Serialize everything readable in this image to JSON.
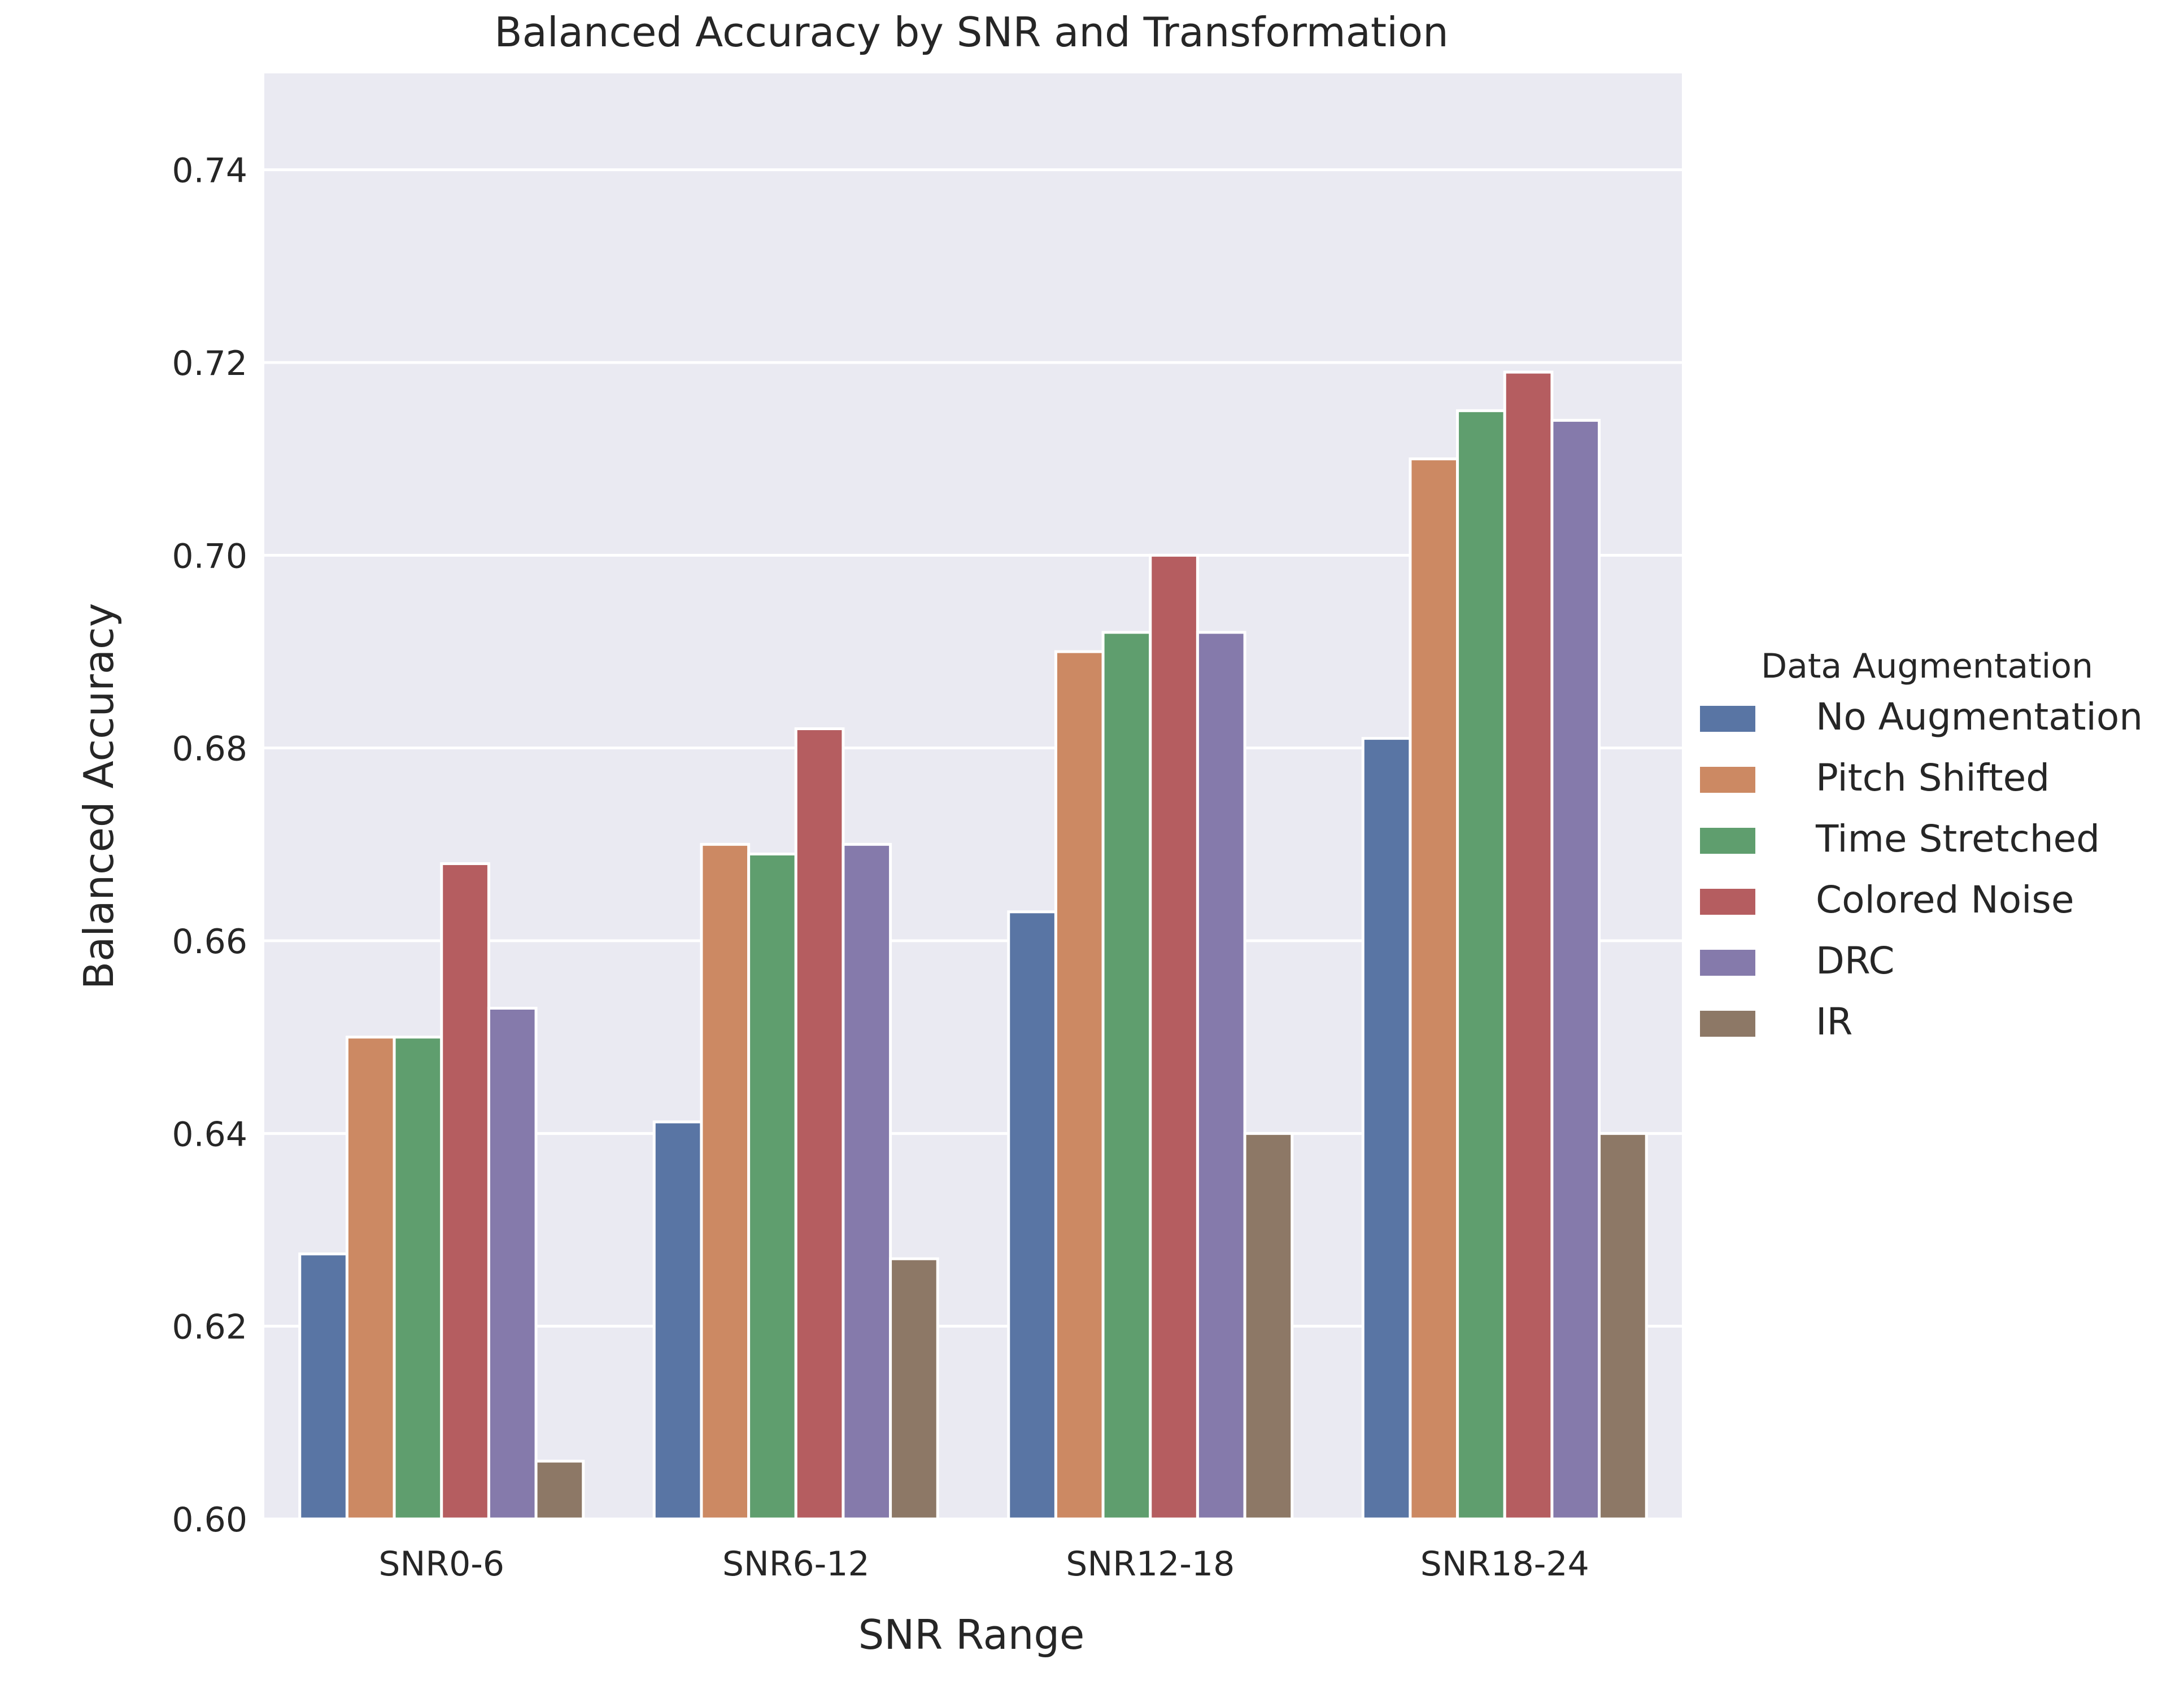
{
  "chart_data": {
    "type": "bar",
    "title": "Balanced Accuracy by SNR and Transformation",
    "xlabel": "SNR Range",
    "ylabel": "Balanced Accuracy",
    "ylim": [
      0.6,
      0.75
    ],
    "yticks": [
      0.6,
      0.62,
      0.64,
      0.66,
      0.68,
      0.7,
      0.72,
      0.74
    ],
    "ytick_labels": [
      "0.60",
      "0.62",
      "0.64",
      "0.66",
      "0.68",
      "0.70",
      "0.72",
      "0.74"
    ],
    "categories": [
      "SNR0-6",
      "SNR6-12",
      "SNR12-18",
      "SNR18-24"
    ],
    "legend_title": "Data Augmentation",
    "legend_position": "right",
    "grid": true,
    "series": [
      {
        "name": "No Augmentation",
        "color": "#5975a4",
        "values": [
          0.6275,
          0.6412,
          0.663,
          0.681
        ]
      },
      {
        "name": "Pitch Shifted",
        "color": "#cc8963",
        "values": [
          0.65,
          0.67,
          0.69,
          0.71
        ]
      },
      {
        "name": "Time Stretched",
        "color": "#5f9e6e",
        "values": [
          0.65,
          0.669,
          0.692,
          0.715
        ]
      },
      {
        "name": "Colored Noise",
        "color": "#b55d60",
        "values": [
          0.668,
          0.682,
          0.7,
          0.719
        ]
      },
      {
        "name": "DRC",
        "color": "#857aab",
        "values": [
          0.653,
          0.67,
          0.692,
          0.714
        ]
      },
      {
        "name": "IR",
        "color": "#8d7866",
        "values": [
          0.606,
          0.627,
          0.64,
          0.64
        ]
      }
    ]
  },
  "colors": {
    "plot_background": "#eaeaf2",
    "grid": "#ffffff",
    "text": "#262626"
  }
}
